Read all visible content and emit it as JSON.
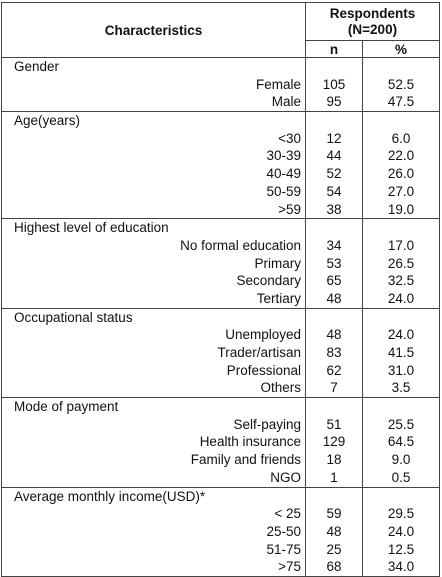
{
  "header": {
    "characteristics": "Characteristics",
    "respondents": "Respondents",
    "total": "(N=200)",
    "n": "n",
    "percent": "%"
  },
  "sections": [
    {
      "title": "Gender",
      "rows": [
        [
          "Female",
          "105",
          "52.5"
        ],
        [
          "Male",
          "95",
          "47.5"
        ]
      ]
    },
    {
      "title": "Age(years)",
      "rows": [
        [
          "<30",
          "12",
          "6.0"
        ],
        [
          "30-39",
          "44",
          "22.0"
        ],
        [
          "40-49",
          "52",
          "26.0"
        ],
        [
          "50-59",
          "54",
          "27.0"
        ],
        [
          ">59",
          "38",
          "19.0"
        ]
      ]
    },
    {
      "title": "Highest level of education",
      "rows": [
        [
          "No formal education",
          "34",
          "17.0"
        ],
        [
          "Primary",
          "53",
          "26.5"
        ],
        [
          "Secondary",
          "65",
          "32.5"
        ],
        [
          "Tertiary",
          "48",
          "24.0"
        ]
      ]
    },
    {
      "title": "Occupational status",
      "rows": [
        [
          "Unemployed",
          "48",
          "24.0"
        ],
        [
          "Trader/artisan",
          "83",
          "41.5"
        ],
        [
          "Professional",
          "62",
          "31.0"
        ],
        [
          "Others",
          "7",
          "3.5"
        ]
      ]
    },
    {
      "title": "Mode of payment",
      "rows": [
        [
          "Self-paying",
          "51",
          "25.5"
        ],
        [
          "Health insurance",
          "129",
          "64.5"
        ],
        [
          "Family and friends",
          "18",
          "9.0"
        ],
        [
          "NGO",
          "1",
          "0.5"
        ]
      ]
    },
    {
      "title": "Average monthly income(USD)*",
      "rows": [
        [
          "< 25",
          "59",
          "29.5"
        ],
        [
          "25-50",
          "48",
          "24.0"
        ],
        [
          "51-75",
          "25",
          "12.5"
        ],
        [
          ">75",
          "68",
          "34.0"
        ]
      ]
    }
  ]
}
